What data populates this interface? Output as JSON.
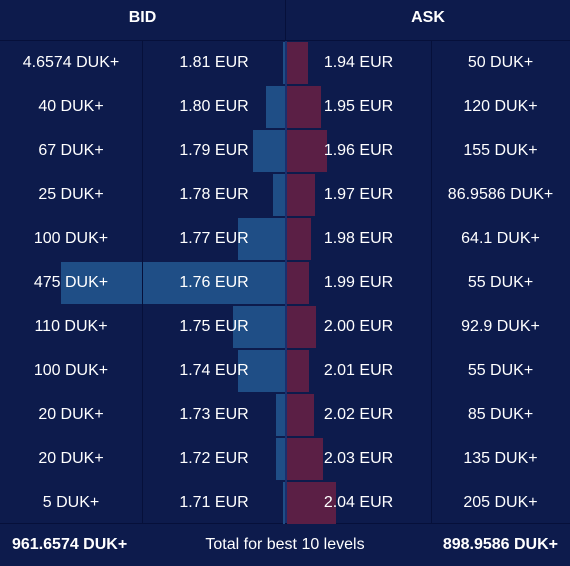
{
  "header": {
    "bid_label": "BID",
    "ask_label": "ASK"
  },
  "colors": {
    "background": "#0d1b4c",
    "bid_bar": "#1f4e86",
    "ask_bar": "#5b1f45",
    "text": "#ffffff"
  },
  "rows": [
    {
      "bid_qty": "4.6574 DUK+",
      "bid_price": "1.81 EUR",
      "ask_price": "1.94 EUR",
      "ask_qty": "50 DUK+",
      "bid_depth": 4.6574,
      "ask_depth": 50
    },
    {
      "bid_qty": "40 DUK+",
      "bid_price": "1.80 EUR",
      "ask_price": "1.95 EUR",
      "ask_qty": "120 DUK+",
      "bid_depth": 40,
      "ask_depth": 120
    },
    {
      "bid_qty": "67 DUK+",
      "bid_price": "1.79 EUR",
      "ask_price": "1.96 EUR",
      "ask_qty": "155 DUK+",
      "bid_depth": 67,
      "ask_depth": 155
    },
    {
      "bid_qty": "25 DUK+",
      "bid_price": "1.78 EUR",
      "ask_price": "1.97 EUR",
      "ask_qty": "86.9586 DUK+",
      "bid_depth": 25,
      "ask_depth": 86.9586
    },
    {
      "bid_qty": "100 DUK+",
      "bid_price": "1.77 EUR",
      "ask_price": "1.98 EUR",
      "ask_qty": "64.1 DUK+",
      "bid_depth": 100,
      "ask_depth": 64.1
    },
    {
      "bid_qty": "475 DUK+",
      "bid_price": "1.76 EUR",
      "ask_price": "1.99 EUR",
      "ask_qty": "55 DUK+",
      "bid_depth": 475,
      "ask_depth": 55
    },
    {
      "bid_qty": "110 DUK+",
      "bid_price": "1.75 EUR",
      "ask_price": "2.00 EUR",
      "ask_qty": "92.9 DUK+",
      "bid_depth": 110,
      "ask_depth": 92.9
    },
    {
      "bid_qty": "100 DUK+",
      "bid_price": "1.74 EUR",
      "ask_price": "2.01 EUR",
      "ask_qty": "55 DUK+",
      "bid_depth": 100,
      "ask_depth": 55
    },
    {
      "bid_qty": "20 DUK+",
      "bid_price": "1.73 EUR",
      "ask_price": "2.02 EUR",
      "ask_qty": "85 DUK+",
      "bid_depth": 20,
      "ask_depth": 85
    },
    {
      "bid_qty": "20 DUK+",
      "bid_price": "1.72 EUR",
      "ask_price": "2.03 EUR",
      "ask_qty": "135 DUK+",
      "bid_depth": 20,
      "ask_depth": 135
    },
    {
      "bid_qty": "5 DUK+",
      "bid_price": "1.71 EUR",
      "ask_price": "2.04 EUR",
      "ask_qty": "205 DUK+",
      "bid_depth": 5,
      "ask_depth": 205
    }
  ],
  "footer": {
    "bid_total": "961.6574 DUK+",
    "label": "Total for best 10 levels",
    "ask_total": "898.9586 DUK+"
  }
}
